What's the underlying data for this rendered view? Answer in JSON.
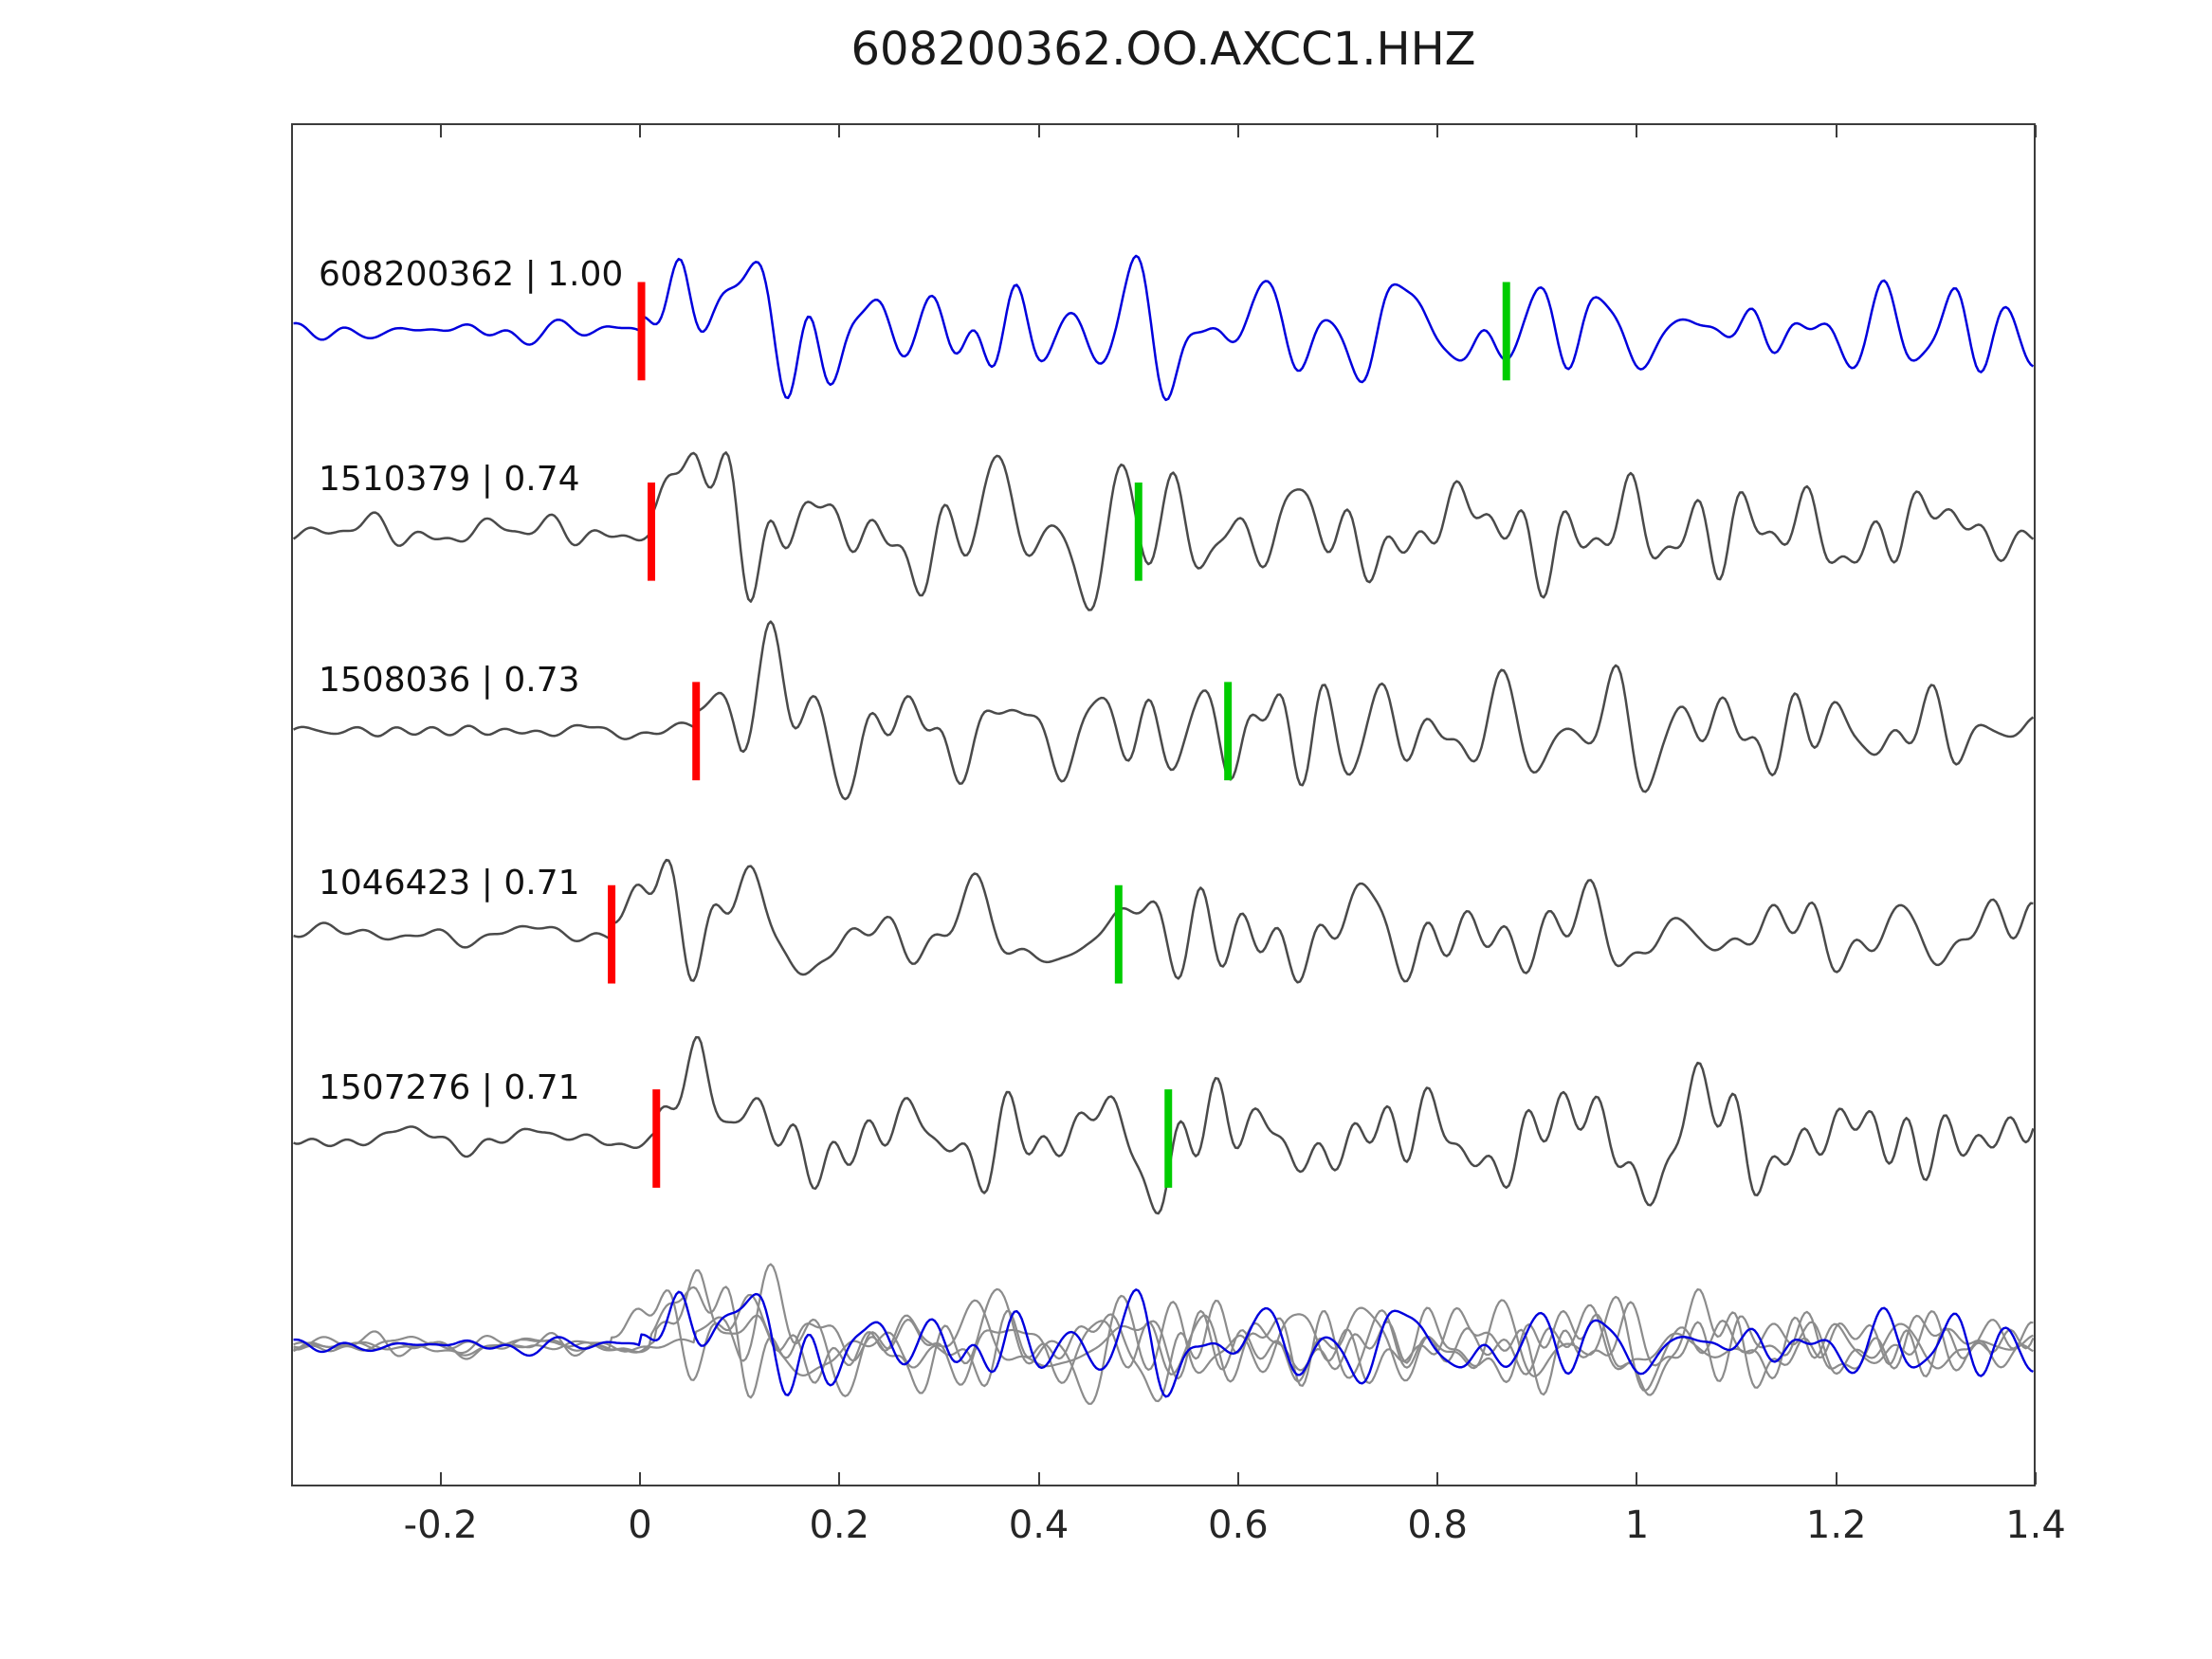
{
  "title": "608200362.OO.AXCC1.HHZ",
  "station_meta": {
    "event_id": "608200362",
    "network": "OO",
    "station": "AXCC1",
    "channel": "HHZ"
  },
  "colors": {
    "template_trace": "#0000dd",
    "match_trace": "#4a4a4a",
    "overlay_trace": "#8c8c8c",
    "pick_red": "#ff0000",
    "pick_green": "#00cc00",
    "axis": "#3c3c3c",
    "text": "#1a1a1a"
  },
  "chart_data": {
    "type": "line",
    "title": "608200362.OO.AXCC1.HHZ",
    "xlabel": "",
    "ylabel": "",
    "xlim": [
      -0.35,
      1.4
    ],
    "x_ticks": [
      -0.2,
      0,
      0.2,
      0.4,
      0.6,
      0.8,
      1,
      1.2,
      1.4
    ],
    "x_tick_labels": [
      "-0.2",
      "0",
      "0.2",
      "0.4",
      "0.6",
      "0.8",
      "1",
      "1.2",
      "1.4"
    ],
    "grid": false,
    "legend": false,
    "traces": [
      {
        "label": "608200362 | 1.00",
        "event_id": "608200362",
        "correlation": 1.0,
        "role": "template",
        "red_pick": 0.0,
        "green_pick": 0.87
      },
      {
        "label": "1510379 | 0.74",
        "event_id": "1510379",
        "correlation": 0.74,
        "role": "match",
        "red_pick": 0.01,
        "green_pick": 0.5
      },
      {
        "label": "1508036 | 0.73",
        "event_id": "1508036",
        "correlation": 0.73,
        "role": "match",
        "red_pick": 0.055,
        "green_pick": 0.59
      },
      {
        "label": "1046423 | 0.71",
        "event_id": "1046423",
        "correlation": 0.71,
        "role": "match",
        "red_pick": -0.03,
        "green_pick": 0.48
      },
      {
        "label": "1507276 | 0.71",
        "event_id": "1507276",
        "correlation": 0.71,
        "role": "match",
        "red_pick": 0.015,
        "green_pick": 0.53
      }
    ],
    "overlay_row": {
      "traces_overlaid": [
        "1510379",
        "1508036",
        "1046423",
        "1507276",
        "608200362"
      ]
    }
  }
}
